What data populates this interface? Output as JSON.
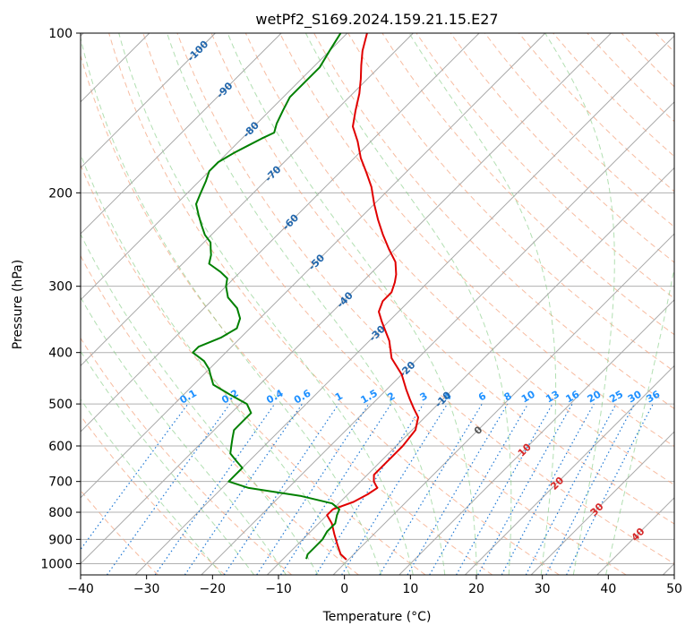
{
  "colors": {
    "temperature": "#e00000",
    "dewpoint": "#008000",
    "isotherm": "#909090",
    "dry_adiabat": "#f4a582",
    "moist_adiabat": "#7fc97f",
    "mixing_ratio": "#1f78d4",
    "background_dry_adiabat": "#d9b38c",
    "isotherm_label": "#2166ac",
    "dry_label": "#d62728",
    "mixing_label": "#1e90ff"
  },
  "chart_data": {
    "type": "line",
    "title": "wetPf2_S169.2024.159.21.15.E27",
    "xlabel": "Temperature (°C)",
    "ylabel": "Pressure (hPa)",
    "xlim": [
      -40,
      50
    ],
    "ylim": [
      1050,
      100
    ],
    "y_scale": "log",
    "grid": true,
    "skew": true,
    "x_ticks": [
      "−40",
      "−30",
      "−20",
      "−10",
      "0",
      "10",
      "20",
      "30",
      "40",
      "50"
    ],
    "y_ticks": [
      "100",
      "200",
      "300",
      "400",
      "500",
      "600",
      "700",
      "800",
      "900",
      "1000"
    ],
    "isotherm_labels": [
      "-100",
      "-90",
      "-80",
      "-70",
      "-60",
      "-50",
      "-40",
      "-30",
      "-20",
      "-10",
      "0"
    ],
    "mixing_ratio_labels": [
      "0.1",
      "0.2",
      "0.4",
      "0.6",
      "1",
      "1.5",
      "2",
      "3",
      "4",
      "6",
      "8",
      "10",
      "13",
      "16",
      "20",
      "25",
      "30",
      "36"
    ],
    "dry_adiabat_labels": [
      "10",
      "20",
      "30",
      "40"
    ],
    "series": [
      {
        "key": "temperature",
        "points": [
          [
            -0.3,
            983
          ],
          [
            -2,
            960
          ],
          [
            -4,
            920
          ],
          [
            -6,
            880
          ],
          [
            -8,
            840
          ],
          [
            -10,
            810
          ],
          [
            -10,
            790
          ],
          [
            -8,
            765
          ],
          [
            -7,
            740
          ],
          [
            -6.5,
            720
          ],
          [
            -8,
            700
          ],
          [
            -9,
            680
          ],
          [
            -9,
            650
          ],
          [
            -9,
            600
          ],
          [
            -9.5,
            560
          ],
          [
            -11,
            530
          ],
          [
            -13,
            510
          ],
          [
            -15,
            490
          ],
          [
            -17,
            470
          ],
          [
            -20,
            440
          ],
          [
            -24,
            410
          ],
          [
            -27,
            380
          ],
          [
            -31,
            350
          ],
          [
            -33,
            335
          ],
          [
            -34,
            320
          ],
          [
            -34,
            308
          ],
          [
            -35,
            295
          ],
          [
            -36,
            285
          ],
          [
            -38,
            270
          ],
          [
            -41,
            255
          ],
          [
            -44,
            240
          ],
          [
            -47,
            225
          ],
          [
            -50,
            210
          ],
          [
            -53,
            195
          ],
          [
            -56,
            183
          ],
          [
            -59,
            172
          ],
          [
            -62,
            160
          ],
          [
            -65,
            150
          ],
          [
            -67,
            140
          ],
          [
            -69,
            130
          ],
          [
            -71,
            122
          ],
          [
            -73,
            115
          ],
          [
            -75,
            108
          ],
          [
            -77,
            100
          ]
        ]
      },
      {
        "key": "dewpoint",
        "points": [
          [
            -6.5,
            980
          ],
          [
            -7,
            960
          ],
          [
            -7,
            930
          ],
          [
            -7,
            900
          ],
          [
            -7.5,
            870
          ],
          [
            -7.5,
            840
          ],
          [
            -8.5,
            810
          ],
          [
            -9,
            790
          ],
          [
            -11,
            770
          ],
          [
            -17,
            745
          ],
          [
            -26,
            720
          ],
          [
            -30,
            700
          ],
          [
            -30,
            680
          ],
          [
            -30,
            660
          ],
          [
            -32,
            640
          ],
          [
            -34,
            620
          ],
          [
            -35,
            600
          ],
          [
            -36,
            580
          ],
          [
            -37,
            560
          ],
          [
            -37,
            540
          ],
          [
            -37,
            520
          ],
          [
            -39,
            500
          ],
          [
            -43,
            480
          ],
          [
            -47,
            460
          ],
          [
            -49,
            440
          ],
          [
            -50,
            430
          ],
          [
            -52,
            415
          ],
          [
            -55,
            400
          ],
          [
            -55,
            390
          ],
          [
            -53,
            375
          ],
          [
            -52,
            360
          ],
          [
            -53,
            345
          ],
          [
            -55,
            330
          ],
          [
            -58,
            315
          ],
          [
            -60,
            300
          ],
          [
            -61,
            290
          ],
          [
            -63,
            282
          ],
          [
            -66,
            272
          ],
          [
            -67,
            262
          ],
          [
            -68,
            255
          ],
          [
            -69,
            248
          ],
          [
            -71,
            240
          ],
          [
            -73,
            230
          ],
          [
            -75,
            220
          ],
          [
            -77,
            210
          ],
          [
            -78,
            200
          ],
          [
            -79,
            190
          ],
          [
            -80,
            182
          ],
          [
            -80,
            175
          ],
          [
            -79,
            168
          ],
          [
            -78,
            163
          ],
          [
            -77,
            158
          ],
          [
            -76,
            154
          ],
          [
            -77,
            148
          ],
          [
            -78,
            140
          ],
          [
            -79,
            132
          ],
          [
            -79,
            124
          ],
          [
            -79,
            116
          ],
          [
            -80,
            108
          ],
          [
            -81,
            100
          ]
        ]
      }
    ]
  }
}
